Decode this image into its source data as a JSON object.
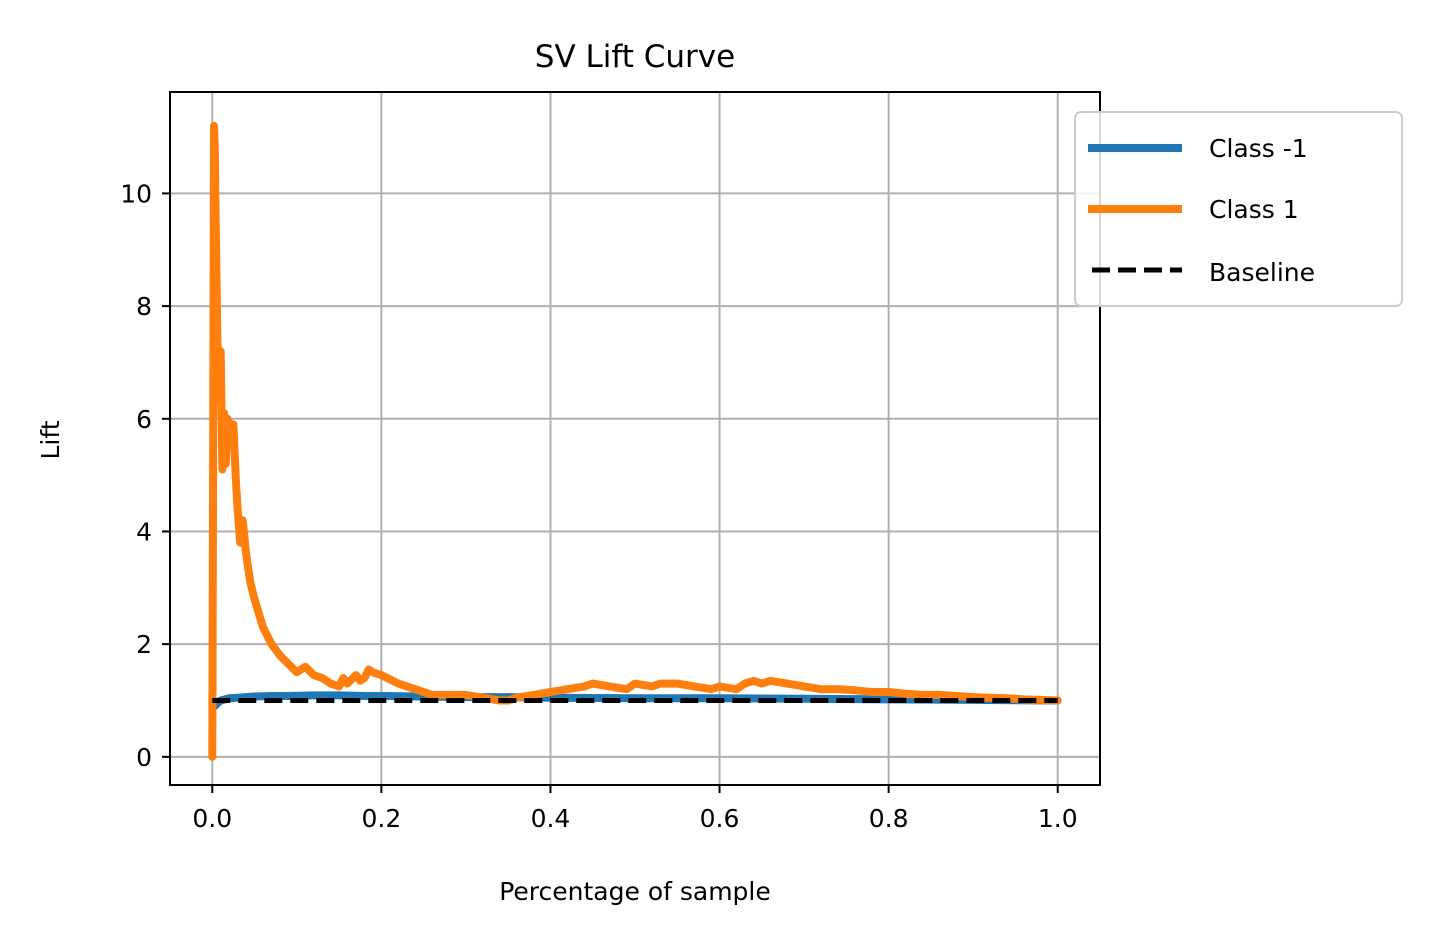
{
  "chart_data": {
    "type": "line",
    "title": "SV Lift Curve",
    "xlabel": "Percentage of sample",
    "ylabel": "Lift",
    "xlim": [
      -0.05,
      1.05
    ],
    "ylim": [
      -0.5,
      11.8
    ],
    "xticks": [
      0.0,
      0.2,
      0.4,
      0.6,
      0.8,
      1.0
    ],
    "xtick_labels": [
      "0.0",
      "0.2",
      "0.4",
      "0.6",
      "0.8",
      "1.0"
    ],
    "yticks": [
      0,
      2,
      4,
      6,
      8,
      10
    ],
    "ytick_labels": [
      "0",
      "2",
      "4",
      "6",
      "8",
      "10"
    ],
    "grid": true,
    "legend_position": "outside-top-right",
    "series": [
      {
        "name": "Class -1",
        "color": "#1f77b4",
        "style": "solid",
        "x": [
          0.001,
          0.003,
          0.006,
          0.01,
          0.015,
          0.02,
          0.03,
          0.04,
          0.05,
          0.07,
          0.09,
          0.12,
          0.15,
          0.18,
          0.2,
          0.25,
          0.3,
          0.35,
          0.4,
          0.5,
          0.6,
          0.7,
          0.8,
          0.9,
          1.0
        ],
        "y": [
          1.0,
          0.9,
          0.95,
          1.0,
          1.02,
          1.04,
          1.05,
          1.06,
          1.07,
          1.08,
          1.08,
          1.09,
          1.09,
          1.08,
          1.08,
          1.07,
          1.06,
          1.06,
          1.05,
          1.04,
          1.04,
          1.03,
          1.02,
          1.01,
          1.0
        ]
      },
      {
        "name": "Class 1",
        "color": "#ff7f0e",
        "style": "solid",
        "x": [
          0.0,
          0.001,
          0.002,
          0.003,
          0.004,
          0.006,
          0.008,
          0.01,
          0.012,
          0.014,
          0.016,
          0.018,
          0.02,
          0.022,
          0.025,
          0.028,
          0.03,
          0.033,
          0.036,
          0.04,
          0.045,
          0.05,
          0.06,
          0.07,
          0.08,
          0.09,
          0.1,
          0.11,
          0.12,
          0.13,
          0.14,
          0.15,
          0.155,
          0.16,
          0.17,
          0.175,
          0.18,
          0.185,
          0.19,
          0.2,
          0.22,
          0.24,
          0.26,
          0.28,
          0.3,
          0.32,
          0.34,
          0.35,
          0.36,
          0.38,
          0.4,
          0.42,
          0.44,
          0.45,
          0.47,
          0.49,
          0.5,
          0.52,
          0.53,
          0.55,
          0.57,
          0.59,
          0.6,
          0.62,
          0.63,
          0.64,
          0.65,
          0.66,
          0.68,
          0.7,
          0.72,
          0.74,
          0.76,
          0.78,
          0.8,
          0.82,
          0.84,
          0.86,
          0.88,
          0.9,
          0.92,
          0.94,
          0.96,
          0.98,
          1.0
        ],
        "y": [
          0.0,
          5.0,
          11.2,
          10.8,
          9.5,
          7.5,
          6.3,
          7.2,
          5.1,
          6.1,
          5.2,
          6.0,
          5.9,
          5.7,
          5.9,
          4.9,
          4.4,
          3.8,
          4.2,
          3.6,
          3.1,
          2.8,
          2.3,
          2.0,
          1.8,
          1.65,
          1.5,
          1.6,
          1.45,
          1.4,
          1.3,
          1.25,
          1.4,
          1.3,
          1.45,
          1.35,
          1.4,
          1.55,
          1.5,
          1.45,
          1.3,
          1.2,
          1.1,
          1.1,
          1.1,
          1.05,
          1.0,
          1.0,
          1.05,
          1.1,
          1.15,
          1.2,
          1.25,
          1.3,
          1.25,
          1.2,
          1.3,
          1.25,
          1.3,
          1.3,
          1.25,
          1.2,
          1.25,
          1.2,
          1.3,
          1.35,
          1.3,
          1.35,
          1.3,
          1.25,
          1.2,
          1.2,
          1.18,
          1.15,
          1.15,
          1.12,
          1.1,
          1.1,
          1.08,
          1.06,
          1.05,
          1.04,
          1.02,
          1.01,
          1.0
        ]
      },
      {
        "name": "Baseline",
        "color": "#000000",
        "style": "dashed",
        "x": [
          0.0,
          1.0
        ],
        "y": [
          1.0,
          1.0
        ]
      }
    ]
  }
}
